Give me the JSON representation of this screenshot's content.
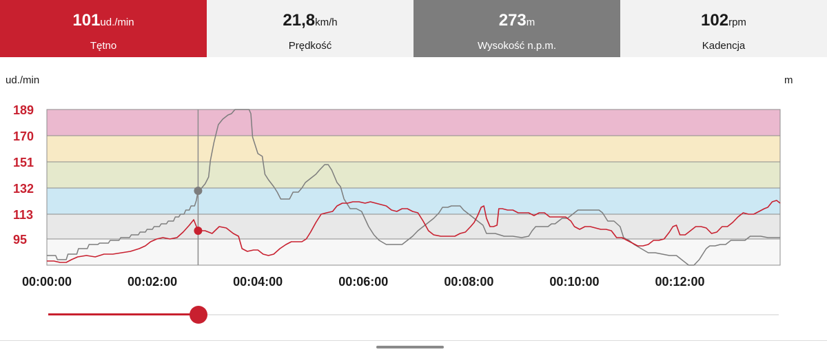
{
  "metrics": [
    {
      "value": "101",
      "unit": "ud./min",
      "label": "Tętno",
      "active": true
    },
    {
      "value": "21,8",
      "unit": "km/h",
      "label": "Prędkość",
      "active": false
    },
    {
      "value": "273",
      "unit": "m",
      "label": "Wysokość n.p.m.",
      "active": true
    },
    {
      "value": "102",
      "unit": "rpm",
      "label": "Kadencja",
      "active": false
    }
  ],
  "colors": {
    "heart_rate": "#c8202f",
    "altitude": "#7d7d7d",
    "zone_5": "#ebb9cf",
    "zone_4": "#f8eac5",
    "zone_3": "#e5e9cc",
    "zone_2": "#cce8f4",
    "zone_1": "#e8e8e8",
    "zone_0": "#f7f7f7"
  },
  "chart_data": {
    "type": "line",
    "y_left_unit": "ud./min",
    "y_right_unit": "m",
    "x_ticks": [
      "00:00:00",
      "00:02:00",
      "00:04:00",
      "00:06:00",
      "00:08:00",
      "00:10:00",
      "00:12:00"
    ],
    "x_tick_seconds": [
      0,
      120,
      240,
      360,
      480,
      600,
      720
    ],
    "xlim_seconds": [
      0,
      834
    ],
    "y_ticks": [
      "189",
      "170",
      "151",
      "132",
      "113",
      "95"
    ],
    "y_tick_values": [
      189,
      170,
      151,
      132,
      113,
      95
    ],
    "ylim": [
      76,
      189
    ],
    "zones": [
      {
        "from": 170,
        "to": 189,
        "color_key": "zone_5"
      },
      {
        "from": 151,
        "to": 170,
        "color_key": "zone_4"
      },
      {
        "from": 132,
        "to": 151,
        "color_key": "zone_3"
      },
      {
        "from": 113,
        "to": 132,
        "color_key": "zone_2"
      },
      {
        "from": 95,
        "to": 113,
        "color_key": "zone_1"
      },
      {
        "from": 76,
        "to": 95,
        "color_key": "zone_0"
      }
    ],
    "cursor_seconds": 172,
    "series": [
      {
        "key": "heart_rate",
        "unit": "ud./min",
        "points": [
          [
            0,
            79
          ],
          [
            8,
            79
          ],
          [
            15,
            78
          ],
          [
            22,
            78
          ],
          [
            28,
            80
          ],
          [
            35,
            82
          ],
          [
            45,
            83
          ],
          [
            55,
            82
          ],
          [
            65,
            84
          ],
          [
            75,
            84
          ],
          [
            85,
            85
          ],
          [
            95,
            86
          ],
          [
            105,
            88
          ],
          [
            112,
            90
          ],
          [
            118,
            93
          ],
          [
            125,
            95
          ],
          [
            132,
            96
          ],
          [
            140,
            95
          ],
          [
            148,
            96
          ],
          [
            155,
            100
          ],
          [
            162,
            105
          ],
          [
            167,
            109
          ],
          [
            172,
            101
          ],
          [
            180,
            101
          ],
          [
            188,
            99
          ],
          [
            196,
            104
          ],
          [
            204,
            103
          ],
          [
            212,
            99
          ],
          [
            218,
            97
          ],
          [
            222,
            88
          ],
          [
            228,
            86
          ],
          [
            235,
            87
          ],
          [
            240,
            87
          ],
          [
            246,
            84
          ],
          [
            252,
            83
          ],
          [
            258,
            84
          ],
          [
            265,
            88
          ],
          [
            272,
            91
          ],
          [
            278,
            93
          ],
          [
            285,
            93
          ],
          [
            290,
            93
          ],
          [
            295,
            95
          ],
          [
            300,
            100
          ],
          [
            306,
            107
          ],
          [
            312,
            113
          ],
          [
            318,
            114
          ],
          [
            325,
            115
          ],
          [
            330,
            119
          ],
          [
            336,
            121
          ],
          [
            342,
            121
          ],
          [
            348,
            122
          ],
          [
            355,
            122
          ],
          [
            362,
            121
          ],
          [
            368,
            122
          ],
          [
            374,
            121
          ],
          [
            380,
            120
          ],
          [
            386,
            119
          ],
          [
            392,
            116
          ],
          [
            398,
            115
          ],
          [
            404,
            117
          ],
          [
            410,
            117
          ],
          [
            416,
            115
          ],
          [
            422,
            114
          ],
          [
            428,
            108
          ],
          [
            434,
            101
          ],
          [
            440,
            98
          ],
          [
            448,
            97
          ],
          [
            456,
            97
          ],
          [
            464,
            97
          ],
          [
            470,
            99
          ],
          [
            476,
            100
          ],
          [
            482,
            104
          ],
          [
            486,
            107
          ],
          [
            490,
            112
          ],
          [
            494,
            118
          ],
          [
            497,
            119
          ],
          [
            500,
            110
          ],
          [
            504,
            104
          ],
          [
            508,
            104
          ],
          [
            512,
            105
          ],
          [
            514,
            117
          ],
          [
            518,
            117
          ],
          [
            524,
            116
          ],
          [
            530,
            116
          ],
          [
            536,
            114
          ],
          [
            542,
            114
          ],
          [
            548,
            114
          ],
          [
            554,
            112
          ],
          [
            560,
            114
          ],
          [
            566,
            114
          ],
          [
            572,
            111
          ],
          [
            578,
            111
          ],
          [
            584,
            111
          ],
          [
            590,
            111
          ],
          [
            596,
            108
          ],
          [
            600,
            104
          ],
          [
            606,
            102
          ],
          [
            612,
            104
          ],
          [
            618,
            104
          ],
          [
            624,
            103
          ],
          [
            630,
            102
          ],
          [
            636,
            102
          ],
          [
            642,
            101
          ],
          [
            648,
            96
          ],
          [
            654,
            96
          ],
          [
            660,
            94
          ],
          [
            666,
            92
          ],
          [
            672,
            90
          ],
          [
            678,
            90
          ],
          [
            684,
            91
          ],
          [
            690,
            94
          ],
          [
            696,
            94
          ],
          [
            702,
            95
          ],
          [
            708,
            100
          ],
          [
            712,
            104
          ],
          [
            716,
            105
          ],
          [
            720,
            98
          ],
          [
            726,
            98
          ],
          [
            732,
            101
          ],
          [
            738,
            104
          ],
          [
            744,
            104
          ],
          [
            750,
            103
          ],
          [
            756,
            99
          ],
          [
            762,
            100
          ],
          [
            768,
            104
          ],
          [
            774,
            104
          ],
          [
            780,
            107
          ],
          [
            786,
            111
          ],
          [
            792,
            114
          ],
          [
            798,
            113
          ],
          [
            804,
            113
          ],
          [
            810,
            115
          ],
          [
            816,
            117
          ],
          [
            820,
            118
          ],
          [
            825,
            122
          ],
          [
            830,
            123
          ],
          [
            834,
            121
          ]
        ]
      },
      {
        "key": "altitude",
        "unit": "m",
        "points": [
          [
            0,
            83
          ],
          [
            10,
            83
          ],
          [
            12,
            80
          ],
          [
            22,
            80
          ],
          [
            24,
            84
          ],
          [
            34,
            84
          ],
          [
            36,
            88
          ],
          [
            46,
            88
          ],
          [
            48,
            91
          ],
          [
            58,
            91
          ],
          [
            60,
            92
          ],
          [
            70,
            92
          ],
          [
            72,
            94
          ],
          [
            82,
            94
          ],
          [
            84,
            96
          ],
          [
            94,
            96
          ],
          [
            96,
            98
          ],
          [
            104,
            98
          ],
          [
            106,
            100
          ],
          [
            112,
            100
          ],
          [
            114,
            102
          ],
          [
            120,
            102
          ],
          [
            122,
            104
          ],
          [
            128,
            104
          ],
          [
            130,
            106
          ],
          [
            136,
            106
          ],
          [
            138,
            108
          ],
          [
            144,
            108
          ],
          [
            146,
            111
          ],
          [
            150,
            111
          ],
          [
            152,
            113
          ],
          [
            156,
            113
          ],
          [
            158,
            116
          ],
          [
            162,
            116
          ],
          [
            164,
            119
          ],
          [
            168,
            119
          ],
          [
            170,
            123
          ],
          [
            172,
            130
          ],
          [
            176,
            132
          ],
          [
            180,
            135
          ],
          [
            184,
            140
          ],
          [
            186,
            152
          ],
          [
            190,
            165
          ],
          [
            195,
            178
          ],
          [
            200,
            182
          ],
          [
            206,
            185
          ],
          [
            210,
            186
          ],
          [
            214,
            189
          ],
          [
            230,
            189
          ],
          [
            232,
            186
          ],
          [
            234,
            169
          ],
          [
            240,
            157
          ],
          [
            245,
            155
          ],
          [
            248,
            142
          ],
          [
            252,
            138
          ],
          [
            258,
            133
          ],
          [
            262,
            129
          ],
          [
            266,
            124
          ],
          [
            276,
            124
          ],
          [
            280,
            129
          ],
          [
            286,
            129
          ],
          [
            290,
            132
          ],
          [
            294,
            136
          ],
          [
            300,
            139
          ],
          [
            306,
            142
          ],
          [
            310,
            145
          ],
          [
            316,
            149
          ],
          [
            320,
            149
          ],
          [
            324,
            145
          ],
          [
            330,
            136
          ],
          [
            334,
            133
          ],
          [
            338,
            124
          ],
          [
            345,
            117
          ],
          [
            352,
            117
          ],
          [
            358,
            115
          ],
          [
            366,
            104
          ],
          [
            372,
            98
          ],
          [
            378,
            94
          ],
          [
            386,
            91
          ],
          [
            396,
            91
          ],
          [
            404,
            91
          ],
          [
            410,
            94
          ],
          [
            416,
            97
          ],
          [
            422,
            101
          ],
          [
            428,
            104
          ],
          [
            434,
            107
          ],
          [
            440,
            110
          ],
          [
            446,
            114
          ],
          [
            450,
            118
          ],
          [
            456,
            118
          ],
          [
            460,
            119
          ],
          [
            470,
            119
          ],
          [
            474,
            116
          ],
          [
            480,
            113
          ],
          [
            486,
            110
          ],
          [
            490,
            108
          ],
          [
            496,
            105
          ],
          [
            500,
            99
          ],
          [
            510,
            99
          ],
          [
            520,
            97
          ],
          [
            530,
            97
          ],
          [
            540,
            96
          ],
          [
            548,
            97
          ],
          [
            552,
            101
          ],
          [
            556,
            104
          ],
          [
            564,
            104
          ],
          [
            570,
            104
          ],
          [
            574,
            106
          ],
          [
            578,
            106
          ],
          [
            582,
            108
          ],
          [
            586,
            110
          ],
          [
            592,
            110
          ],
          [
            596,
            112
          ],
          [
            600,
            114
          ],
          [
            604,
            116
          ],
          [
            610,
            116
          ],
          [
            618,
            116
          ],
          [
            628,
            116
          ],
          [
            632,
            114
          ],
          [
            638,
            108
          ],
          [
            645,
            108
          ],
          [
            652,
            104
          ],
          [
            656,
            96
          ],
          [
            662,
            94
          ],
          [
            668,
            91
          ],
          [
            676,
            88
          ],
          [
            684,
            85
          ],
          [
            692,
            85
          ],
          [
            700,
            84
          ],
          [
            708,
            83
          ],
          [
            716,
            83
          ],
          [
            722,
            80
          ],
          [
            730,
            76
          ],
          [
            736,
            76
          ],
          [
            742,
            80
          ],
          [
            746,
            84
          ],
          [
            750,
            88
          ],
          [
            754,
            90
          ],
          [
            760,
            90
          ],
          [
            766,
            91
          ],
          [
            772,
            91
          ],
          [
            778,
            94
          ],
          [
            786,
            94
          ],
          [
            794,
            94
          ],
          [
            800,
            97
          ],
          [
            806,
            97
          ],
          [
            812,
            97
          ],
          [
            820,
            96
          ],
          [
            826,
            96
          ],
          [
            834,
            96
          ]
        ]
      }
    ]
  },
  "slider": {
    "value_fraction": 0.206
  }
}
